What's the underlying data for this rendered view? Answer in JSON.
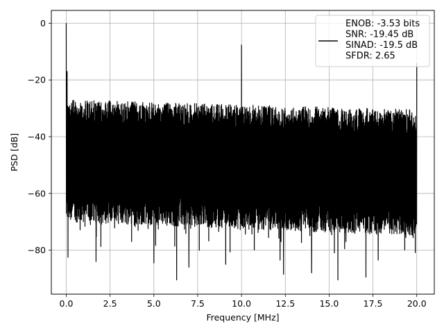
{
  "chart_data": {
    "type": "line",
    "title": "",
    "xlabel": "Frequency [MHz]",
    "ylabel": "PSD [dB]",
    "xlim": [
      -0.85,
      21.0
    ],
    "ylim": [
      -95.5,
      4.5
    ],
    "xticks": [
      0.0,
      2.5,
      5.0,
      7.5,
      10.0,
      12.5,
      15.0,
      17.5,
      20.0
    ],
    "xtick_labels": [
      "0.0",
      "2.5",
      "5.0",
      "7.5",
      "10.0",
      "12.5",
      "15.0",
      "17.5",
      "20.0"
    ],
    "yticks": [
      0,
      -20,
      -40,
      -60,
      -80
    ],
    "ytick_labels": [
      "0",
      "−20",
      "−40",
      "−60",
      "−80"
    ],
    "grid": true,
    "legend_position": "top-right",
    "series": [
      {
        "name": "ENOB: -3.53 bits\nSNR: -19.45 dB\nSINAD: -19.5 dB\nSFDR: 2.65",
        "color": "#000000",
        "noise_floor_upper": [
          [
            0.0,
            -27.0
          ],
          [
            20.0,
            -30.5
          ]
        ],
        "noise_floor_lower_typical": [
          [
            0.0,
            -65.0
          ],
          [
            20.0,
            -70.0
          ]
        ],
        "peaks": [
          {
            "x": 0.0,
            "y": 0.0
          },
          {
            "x": 0.05,
            "y": -17.0
          },
          {
            "x": 10.0,
            "y": -7.7
          },
          {
            "x": 20.0,
            "y": -14.0
          }
        ],
        "deep_dips": [
          {
            "x": 0.1,
            "y": -82.5
          },
          {
            "x": 1.7,
            "y": -84.0
          },
          {
            "x": 5.0,
            "y": -84.5
          },
          {
            "x": 6.3,
            "y": -90.5
          },
          {
            "x": 7.0,
            "y": -86.0
          },
          {
            "x": 9.1,
            "y": -85.0
          },
          {
            "x": 12.2,
            "y": -83.5
          },
          {
            "x": 12.4,
            "y": -88.5
          },
          {
            "x": 14.0,
            "y": -88.0
          },
          {
            "x": 15.5,
            "y": -90.5
          },
          {
            "x": 17.1,
            "y": -89.5
          },
          {
            "x": 17.8,
            "y": -83.5
          }
        ]
      }
    ]
  }
}
